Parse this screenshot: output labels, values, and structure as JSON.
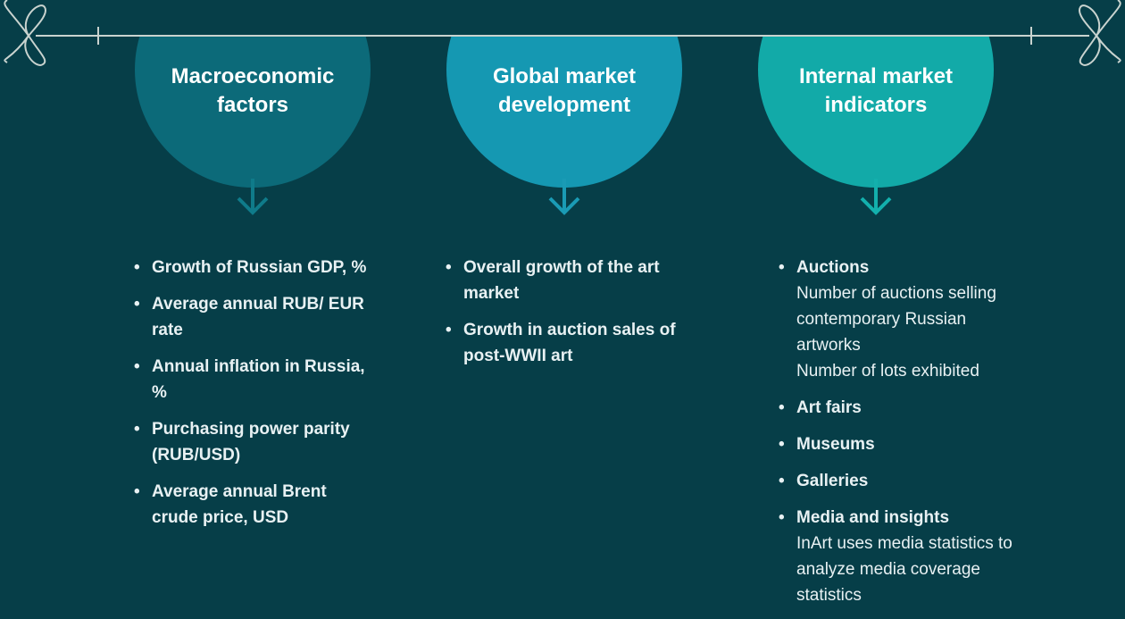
{
  "columns": [
    {
      "title": "Macroeconomic factors",
      "items": [
        {
          "label": "Growth of Russian GDP, %"
        },
        {
          "label": "Average annual RUB/ EUR rate"
        },
        {
          "label": "Annual inflation in Russia, %"
        },
        {
          "label": "Purchasing power parity (RUB/USD)"
        },
        {
          "label": "Average annual Brent crude price, USD"
        }
      ]
    },
    {
      "title": "Global market development",
      "items": [
        {
          "label": "Overall growth of the art market"
        },
        {
          "label": "Growth in auction sales of post-WWII art"
        }
      ]
    },
    {
      "title": "Internal market indicators",
      "items": [
        {
          "label": "Auctions",
          "details": [
            "Number of auctions selling contemporary Russian artworks",
            "Number of lots exhibited"
          ]
        },
        {
          "label": "Art fairs"
        },
        {
          "label": "Museums"
        },
        {
          "label": "Galleries"
        },
        {
          "label": "Media and insights",
          "details": [
            "InArt uses media statistics to analyze media coverage statistics"
          ]
        }
      ]
    }
  ]
}
